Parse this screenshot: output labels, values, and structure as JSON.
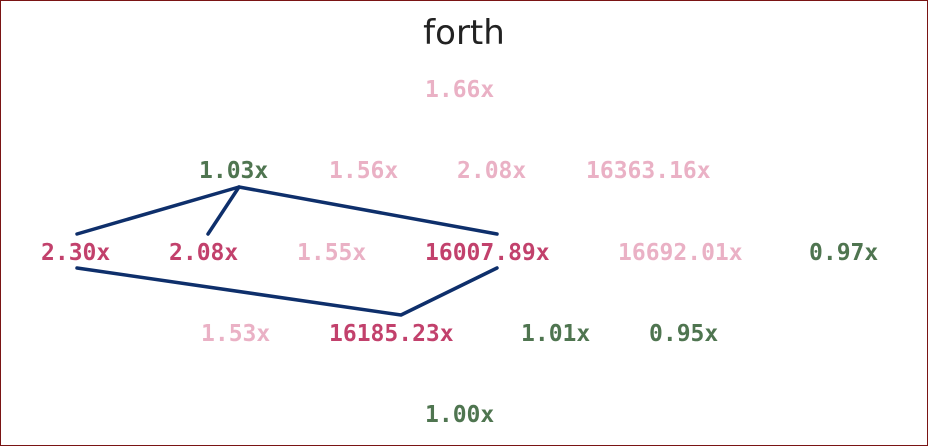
{
  "title": "forth",
  "colors": {
    "highlight": "#c2416c",
    "faded": "#eab1c5",
    "green": "#4f7550",
    "link": "#0e2f6b",
    "frame": "#7a1414"
  },
  "rows": [
    [
      "1.66x"
    ],
    [
      "1.03x",
      "1.56x",
      "2.08x",
      "16363.16x"
    ],
    [
      "2.30x",
      "2.08x",
      "1.55x",
      "16007.89x",
      "16692.01x",
      "0.97x"
    ],
    [
      "1.53x",
      "16185.23x",
      "1.01x",
      "0.95x"
    ],
    [
      "1.00x"
    ]
  ]
}
